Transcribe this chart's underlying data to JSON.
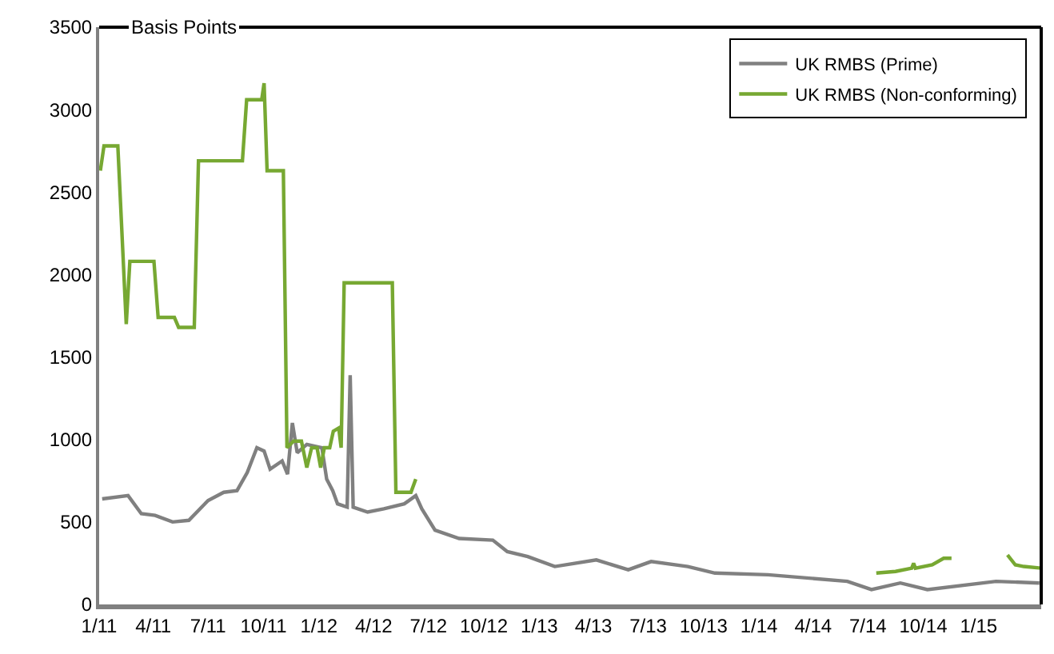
{
  "chart_data": {
    "type": "line",
    "ylabel": "Basis Points",
    "xlim": [
      "2011-01-01",
      "2015-04-15"
    ],
    "ylim": [
      0,
      3500
    ],
    "yticks": [
      0,
      500,
      1000,
      1500,
      2000,
      2500,
      3000,
      3500
    ],
    "xticks": [
      {
        "value": "2011-01-01",
        "label": "1/11"
      },
      {
        "value": "2011-04-01",
        "label": "4/11"
      },
      {
        "value": "2011-07-01",
        "label": "7/11"
      },
      {
        "value": "2011-10-01",
        "label": "10/11"
      },
      {
        "value": "2012-01-01",
        "label": "1/12"
      },
      {
        "value": "2012-04-01",
        "label": "4/12"
      },
      {
        "value": "2012-07-01",
        "label": "7/12"
      },
      {
        "value": "2012-10-01",
        "label": "10/12"
      },
      {
        "value": "2013-01-01",
        "label": "1/13"
      },
      {
        "value": "2013-04-01",
        "label": "4/13"
      },
      {
        "value": "2013-07-01",
        "label": "7/13"
      },
      {
        "value": "2013-10-01",
        "label": "10/13"
      },
      {
        "value": "2014-01-01",
        "label": "1/14"
      },
      {
        "value": "2014-04-01",
        "label": "4/14"
      },
      {
        "value": "2014-07-01",
        "label": "7/14"
      },
      {
        "value": "2014-10-01",
        "label": "10/14"
      },
      {
        "value": "2015-01-01",
        "label": "1/15"
      }
    ],
    "legend": "top right",
    "line_style": "solid",
    "marker": "none",
    "series": [
      {
        "name": "UK RMBS (Prime)",
        "color": "#808080",
        "x": [
          "2011-01-06",
          "2011-02-18",
          "2011-03-12",
          "2011-04-04",
          "2011-05-03",
          "2011-05-30",
          "2011-07-01",
          "2011-07-27",
          "2011-08-18",
          "2011-09-04",
          "2011-09-20",
          "2011-10-02",
          "2011-10-12",
          "2011-11-01",
          "2011-11-10",
          "2011-11-18",
          "2011-11-26",
          "2011-12-12",
          "2012-01-06",
          "2012-01-14",
          "2012-01-24",
          "2012-02-01",
          "2012-02-17",
          "2012-02-22",
          "2012-02-27",
          "2012-03-22",
          "2012-04-18",
          "2012-05-22",
          "2012-06-10",
          "2012-06-20",
          "2012-07-12",
          "2012-08-21",
          "2012-10-16",
          "2012-11-09",
          "2012-12-13",
          "2013-01-27",
          "2013-04-06",
          "2013-05-29",
          "2013-07-06",
          "2013-09-05",
          "2013-10-20",
          "2014-01-16",
          "2014-05-28",
          "2014-07-07",
          "2014-08-24",
          "2014-10-08",
          "2015-01-30",
          "2015-04-12"
        ],
        "values": [
          640,
          660,
          550,
          540,
          500,
          510,
          630,
          680,
          690,
          800,
          950,
          930,
          820,
          870,
          790,
          1100,
          920,
          970,
          950,
          760,
          690,
          610,
          590,
          1390,
          590,
          560,
          580,
          610,
          660,
          580,
          450,
          400,
          390,
          320,
          290,
          230,
          270,
          210,
          260,
          230,
          190,
          180,
          140,
          90,
          130,
          90,
          140,
          130
        ]
      },
      {
        "name": "UK RMBS (Non-conforming)",
        "color": "#77a832",
        "x": [
          "2011-01-03",
          "2011-01-09",
          "2011-02-01",
          "2011-02-15",
          "2011-02-21",
          "2011-04-02",
          "2011-04-09",
          "2011-05-06",
          "2011-05-13",
          "2011-06-08",
          "2011-06-15",
          "2011-08-27",
          "2011-09-03",
          "2011-09-28",
          "2011-10-02",
          "2011-10-07",
          "2011-11-03",
          "2011-11-09",
          "2011-11-20",
          "2011-12-03",
          "2011-12-12",
          "2011-12-20",
          "2011-12-29",
          "2012-01-04",
          "2012-01-10",
          "2012-01-19",
          "2012-01-25",
          "2012-02-03",
          "2012-02-07",
          "2012-02-12",
          "2012-05-02",
          "2012-05-08",
          "2012-06-02",
          "2012-06-10",
          "2013-01-01",
          "2014-07-15",
          "2014-08-16",
          "2014-09-12",
          "2014-09-15",
          "2014-09-18",
          "2014-10-16",
          "2014-11-04",
          "2014-11-17",
          "2015-01-01",
          "2015-02-18",
          "2015-03-03",
          "2015-03-17",
          "2015-04-15"
        ],
        "values": [
          2630,
          2780,
          2780,
          1700,
          2080,
          2080,
          1740,
          1740,
          1680,
          1680,
          2690,
          2690,
          3060,
          3060,
          3160,
          2630,
          2630,
          950,
          990,
          990,
          830,
          950,
          950,
          830,
          950,
          950,
          1050,
          1070,
          950,
          1950,
          1950,
          680,
          680,
          760,
          null,
          190,
          200,
          220,
          250,
          220,
          240,
          280,
          280,
          null,
          300,
          240,
          230,
          220
        ]
      }
    ]
  }
}
